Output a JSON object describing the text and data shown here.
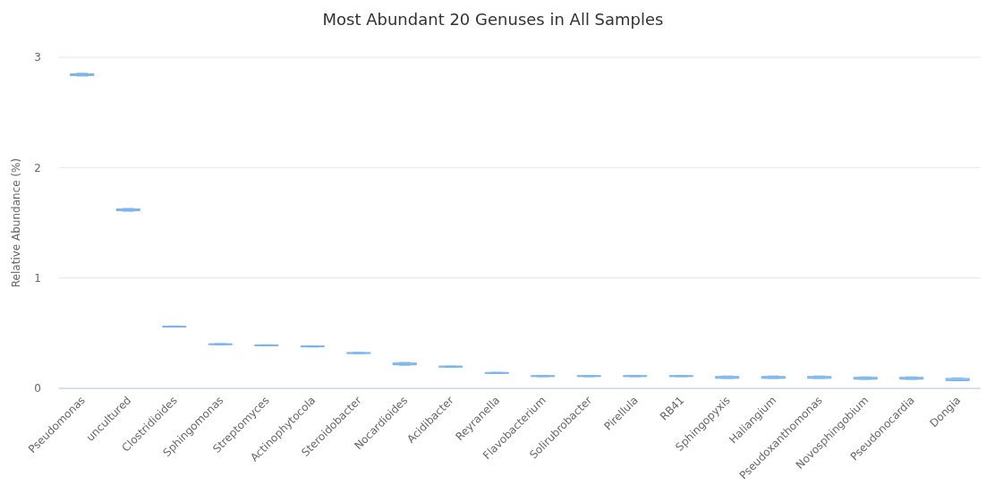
{
  "chart_data": {
    "type": "box",
    "title": "Most Abundant 20 Genuses in All Samples",
    "ylabel": "Relative Abundance (%)",
    "categories": [
      "Pseudomonas",
      "uncultured",
      "Clostridioides",
      "Sphingomonas",
      "Streptomyces",
      "Actinophytocola",
      "Steroidobacter",
      "Nocardioides",
      "Acidibacter",
      "Reyranella",
      "Flavobacterium",
      "Solirubrobacter",
      "Pirellula",
      "RB41",
      "Sphingopyxis",
      "Haliangium",
      "Pseudoxanthomonas",
      "Novosphingobium",
      "Pseudonocardia",
      "Dongia"
    ],
    "color": "#7cb5ec",
    "boxes": [
      {
        "low": 2.83,
        "q1": 2.835,
        "median": 2.84,
        "q3": 2.85,
        "high": 2.855
      },
      {
        "low": 1.605,
        "q1": 1.61,
        "median": 1.615,
        "q3": 1.625,
        "high": 1.63
      },
      {
        "low": 0.555,
        "q1": 0.558,
        "median": 0.56,
        "q3": 0.562,
        "high": 0.565
      },
      {
        "low": 0.395,
        "q1": 0.398,
        "median": 0.4,
        "q3": 0.402,
        "high": 0.405
      },
      {
        "low": 0.385,
        "q1": 0.388,
        "median": 0.39,
        "q3": 0.392,
        "high": 0.395
      },
      {
        "low": 0.375,
        "q1": 0.378,
        "median": 0.38,
        "q3": 0.382,
        "high": 0.385
      },
      {
        "low": 0.315,
        "q1": 0.318,
        "median": 0.32,
        "q3": 0.322,
        "high": 0.325
      },
      {
        "low": 0.21,
        "q1": 0.215,
        "median": 0.217,
        "q3": 0.23,
        "high": 0.235
      },
      {
        "low": 0.192,
        "q1": 0.195,
        "median": 0.197,
        "q3": 0.2,
        "high": 0.202
      },
      {
        "low": 0.135,
        "q1": 0.138,
        "median": 0.14,
        "q3": 0.142,
        "high": 0.145
      },
      {
        "low": 0.106,
        "q1": 0.109,
        "median": 0.111,
        "q3": 0.113,
        "high": 0.116
      },
      {
        "low": 0.106,
        "q1": 0.109,
        "median": 0.111,
        "q3": 0.113,
        "high": 0.116
      },
      {
        "low": 0.106,
        "q1": 0.109,
        "median": 0.111,
        "q3": 0.113,
        "high": 0.116
      },
      {
        "low": 0.106,
        "q1": 0.109,
        "median": 0.111,
        "q3": 0.113,
        "high": 0.116
      },
      {
        "low": 0.09,
        "q1": 0.093,
        "median": 0.095,
        "q3": 0.108,
        "high": 0.112
      },
      {
        "low": 0.09,
        "q1": 0.093,
        "median": 0.095,
        "q3": 0.108,
        "high": 0.112
      },
      {
        "low": 0.09,
        "q1": 0.093,
        "median": 0.095,
        "q3": 0.108,
        "high": 0.112
      },
      {
        "low": 0.082,
        "q1": 0.085,
        "median": 0.087,
        "q3": 0.1,
        "high": 0.104
      },
      {
        "low": 0.082,
        "q1": 0.085,
        "median": 0.087,
        "q3": 0.1,
        "high": 0.104
      },
      {
        "low": 0.07,
        "q1": 0.073,
        "median": 0.075,
        "q3": 0.09,
        "high": 0.095
      }
    ],
    "ylim": [
      0,
      3
    ],
    "yticks": [
      0,
      1,
      2,
      3
    ],
    "grid": "y"
  }
}
